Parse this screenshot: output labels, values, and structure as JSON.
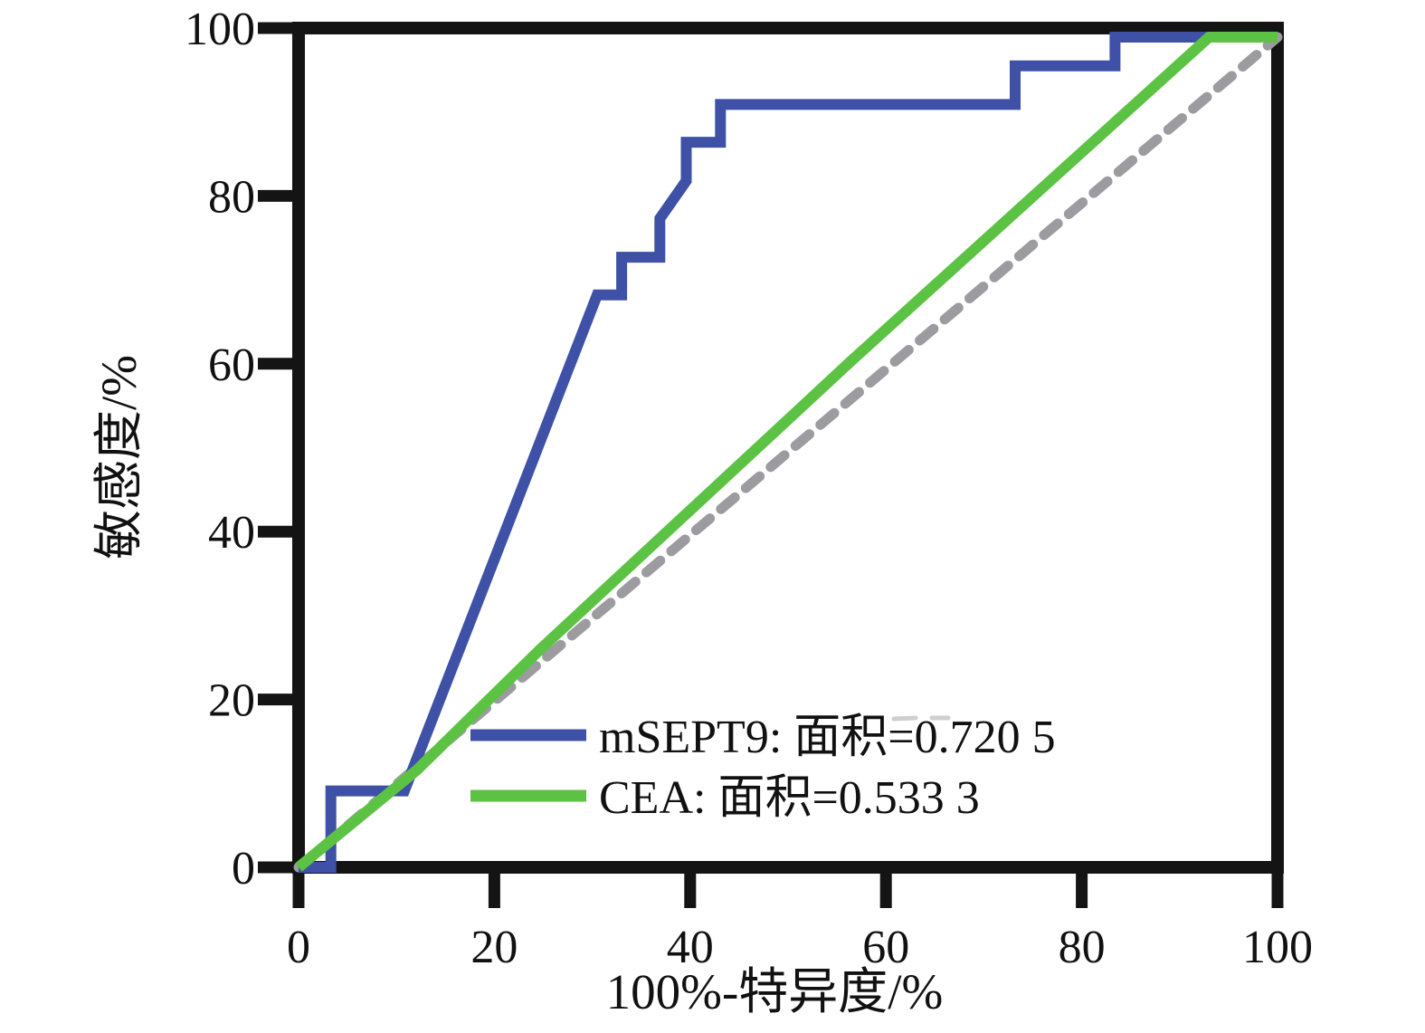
{
  "figure": {
    "background": "#ffffff",
    "frame_color": "#141414"
  },
  "chart_data": {
    "type": "line",
    "subtype": "roc-curve",
    "title": "",
    "xlabel": "100%-特异度/%",
    "ylabel": "敏感度/%",
    "xlim": [
      0,
      100
    ],
    "ylim": [
      0,
      100
    ],
    "x_ticks": [
      0,
      20,
      40,
      60,
      80,
      100
    ],
    "y_ticks": [
      0,
      20,
      40,
      60,
      80,
      100
    ],
    "grid": false,
    "legend_position": "inside-bottom-center",
    "series": [
      {
        "name": "mSEPT9",
        "label": "mSEPT9: 面积=0.720 5",
        "auc": "0.720 5",
        "color": "#3e51a6",
        "style": "solid",
        "points": [
          [
            0,
            0
          ],
          [
            3.3,
            0
          ],
          [
            3.3,
            9.1
          ],
          [
            10.8,
            9.1
          ],
          [
            30.5,
            68.2
          ],
          [
            33,
            68.2
          ],
          [
            33,
            72.7
          ],
          [
            36.9,
            72.7
          ],
          [
            36.9,
            77.3
          ],
          [
            39.6,
            81.8
          ],
          [
            39.6,
            86.4
          ],
          [
            43.1,
            86.4
          ],
          [
            43.1,
            90.9
          ],
          [
            73.2,
            90.9
          ],
          [
            73.2,
            95.5
          ],
          [
            83.4,
            95.5
          ],
          [
            83.4,
            100
          ],
          [
            100,
            100
          ]
        ]
      },
      {
        "name": "CEA",
        "label": "CEA: 面积=0.533 3",
        "auc": "0.533 3",
        "color": "#5cc244",
        "style": "solid",
        "points": [
          [
            0,
            0
          ],
          [
            12,
            11.5
          ],
          [
            24.8,
            26.1
          ],
          [
            56.6,
            60.5
          ],
          [
            93,
            100
          ],
          [
            100,
            100
          ]
        ]
      },
      {
        "name": "reference",
        "label": "",
        "color": "#9b9ba0",
        "style": "dashed",
        "points": [
          [
            0,
            0
          ],
          [
            100,
            100
          ]
        ]
      }
    ]
  }
}
